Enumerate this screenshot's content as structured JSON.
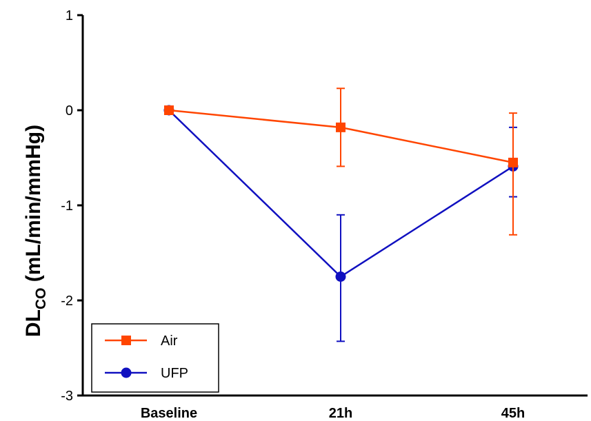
{
  "chart_data": {
    "type": "line",
    "title": "",
    "xlabel": "",
    "ylabel_main": "DL",
    "ylabel_sub": "CO",
    "ylabel_unit": " (mL/min/mmHg)",
    "categories": [
      "Baseline",
      "21h",
      "45h"
    ],
    "ylim": [
      -3,
      1
    ],
    "yticks": [
      1,
      0,
      -1,
      -2,
      -3
    ],
    "grid": false,
    "legend_position": "bottom-left",
    "series": [
      {
        "name": "Air",
        "color": "#ff4500",
        "marker": "square",
        "values": [
          0,
          -0.18,
          -0.55
        ],
        "err_upper": [
          0,
          0.23,
          -0.03
        ],
        "err_lower": [
          0,
          -0.59,
          -1.31
        ]
      },
      {
        "name": "UFP",
        "color": "#1010c0",
        "marker": "circle",
        "values": [
          0,
          -1.75,
          -0.59
        ],
        "err_upper": [
          0,
          -1.1,
          -0.18
        ],
        "err_lower": [
          0,
          -2.43,
          -0.91
        ]
      }
    ]
  }
}
